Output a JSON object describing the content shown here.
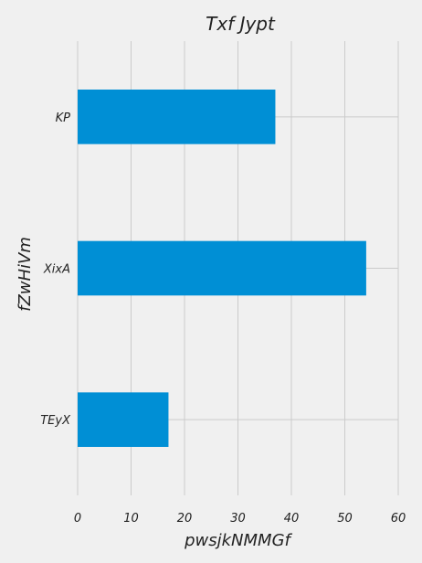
{
  "chart_data": {
    "type": "bar",
    "orientation": "horizontal",
    "title": "Txf  Jypt",
    "xlabel": "pwsjkNMMGf",
    "ylabel": "fZwHiVm",
    "categories": [
      "KP",
      "XixA",
      "TEyX"
    ],
    "values": [
      37,
      54,
      17
    ],
    "xlim": [
      0,
      60
    ],
    "xticks": [
      0,
      10,
      20,
      30,
      40,
      50,
      60
    ],
    "grid": true,
    "bar_color": "#008fd5",
    "background": "#f0f0f0"
  }
}
